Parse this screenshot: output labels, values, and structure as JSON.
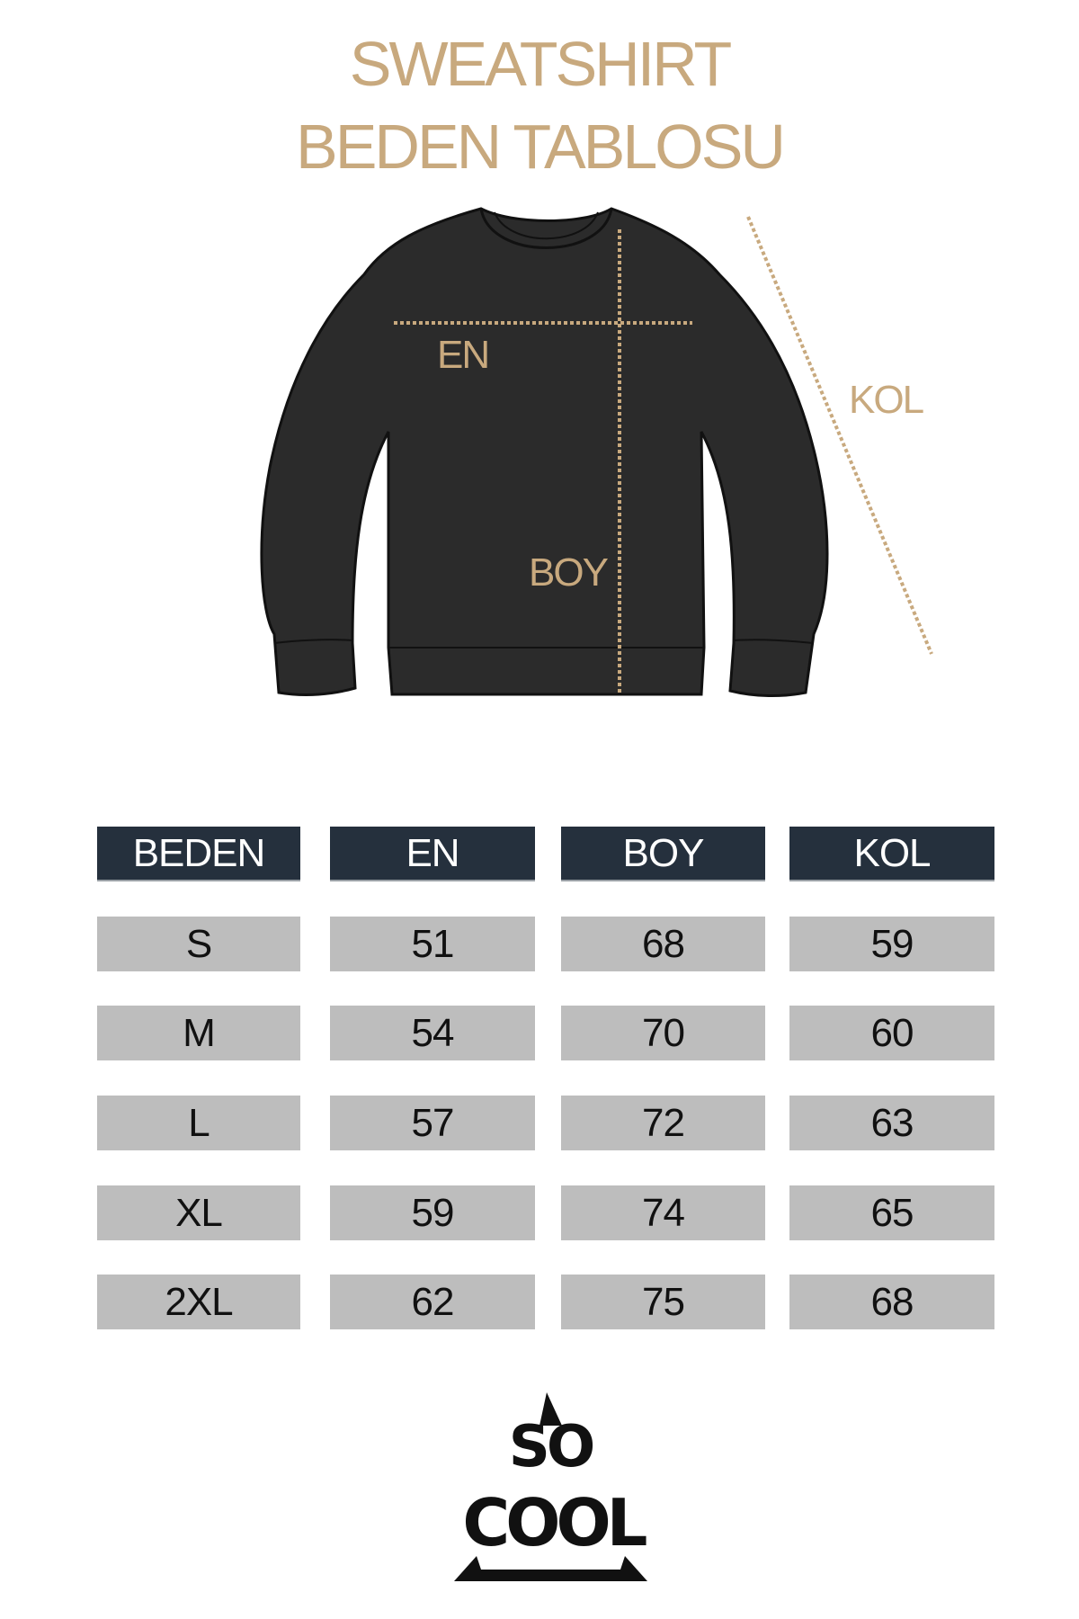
{
  "title": {
    "line1": "SWEATSHIRT",
    "line2": "BEDEN TABLOSU"
  },
  "diagram_labels": {
    "width": "EN",
    "length": "BOY",
    "sleeve": "KOL"
  },
  "table": {
    "headers": [
      "BEDEN",
      "EN",
      "BOY",
      "KOL"
    ],
    "rows": [
      [
        "S",
        "51",
        "68",
        "59"
      ],
      [
        "M",
        "54",
        "70",
        "60"
      ],
      [
        "L",
        "57",
        "72",
        "63"
      ],
      [
        "XL",
        "59",
        "74",
        "65"
      ],
      [
        "2XL",
        "62",
        "75",
        "68"
      ]
    ]
  },
  "logo": {
    "text": "SO COOL"
  },
  "colors": {
    "accent": "#c8a97e",
    "header_bg": "#25303d",
    "cell_bg": "#bdbdbd",
    "garment": "#2b2b2b"
  }
}
